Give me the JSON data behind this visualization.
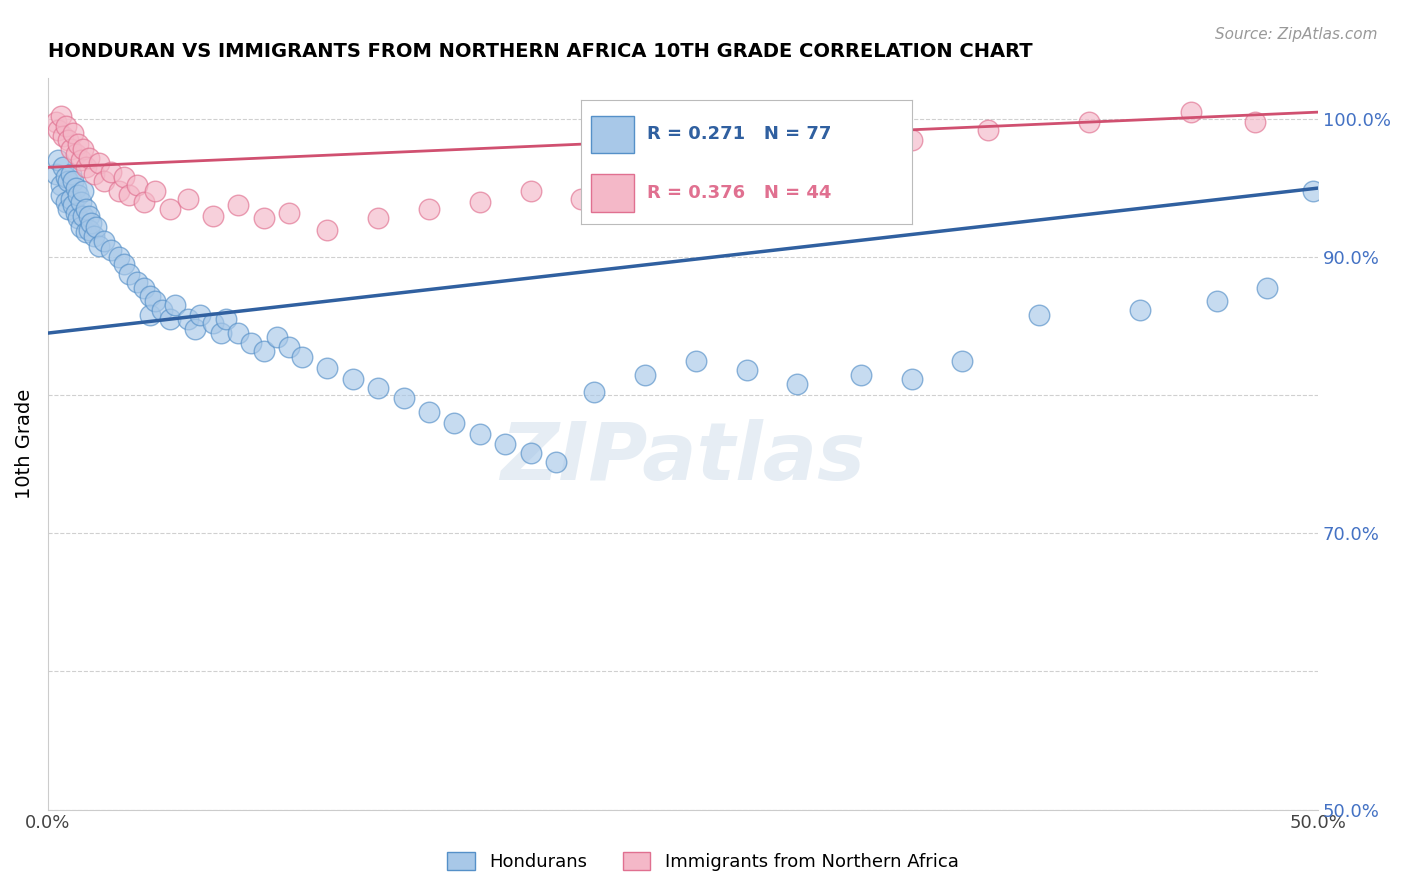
{
  "title": "HONDURAN VS IMMIGRANTS FROM NORTHERN AFRICA 10TH GRADE CORRELATION CHART",
  "source": "Source: ZipAtlas.com",
  "xlabel_blue": "Hondurans",
  "xlabel_pink": "Immigrants from Northern Africa",
  "ylabel": "10th Grade",
  "xlim": [
    0.0,
    0.5
  ],
  "ylim": [
    0.5,
    1.03
  ],
  "xtick_positions": [
    0.0,
    0.1,
    0.2,
    0.3,
    0.4,
    0.5
  ],
  "ytick_positions": [
    0.5,
    0.6,
    0.7,
    0.8,
    0.9,
    1.0
  ],
  "xtick_labels": [
    "0.0%",
    "",
    "",
    "",
    "",
    "50.0%"
  ],
  "ytick_labels": [
    "50.0%",
    "",
    "70.0%",
    "",
    "90.0%",
    "100.0%"
  ],
  "R_blue": 0.271,
  "N_blue": 77,
  "R_pink": 0.376,
  "N_pink": 44,
  "blue_color": "#a8c8e8",
  "pink_color": "#f4b8c8",
  "blue_edge_color": "#5590c8",
  "pink_edge_color": "#e07090",
  "blue_line_color": "#3060a0",
  "pink_line_color": "#d05070",
  "watermark_text": "ZIPatlas",
  "blue_line_x": [
    0.0,
    0.5
  ],
  "blue_line_y": [
    0.845,
    0.95
  ],
  "pink_line_x": [
    0.0,
    0.5
  ],
  "pink_line_y": [
    0.965,
    1.005
  ],
  "blue_scatter": [
    [
      0.003,
      0.96
    ],
    [
      0.004,
      0.97
    ],
    [
      0.005,
      0.952
    ],
    [
      0.005,
      0.945
    ],
    [
      0.006,
      0.965
    ],
    [
      0.007,
      0.958
    ],
    [
      0.007,
      0.94
    ],
    [
      0.008,
      0.955
    ],
    [
      0.008,
      0.935
    ],
    [
      0.009,
      0.96
    ],
    [
      0.009,
      0.942
    ],
    [
      0.01,
      0.955
    ],
    [
      0.01,
      0.938
    ],
    [
      0.011,
      0.95
    ],
    [
      0.011,
      0.932
    ],
    [
      0.012,
      0.945
    ],
    [
      0.012,
      0.928
    ],
    [
      0.013,
      0.94
    ],
    [
      0.013,
      0.922
    ],
    [
      0.014,
      0.948
    ],
    [
      0.014,
      0.93
    ],
    [
      0.015,
      0.935
    ],
    [
      0.015,
      0.918
    ],
    [
      0.016,
      0.93
    ],
    [
      0.016,
      0.92
    ],
    [
      0.017,
      0.925
    ],
    [
      0.018,
      0.915
    ],
    [
      0.019,
      0.922
    ],
    [
      0.02,
      0.908
    ],
    [
      0.022,
      0.912
    ],
    [
      0.025,
      0.905
    ],
    [
      0.028,
      0.9
    ],
    [
      0.03,
      0.895
    ],
    [
      0.032,
      0.888
    ],
    [
      0.035,
      0.882
    ],
    [
      0.038,
      0.878
    ],
    [
      0.04,
      0.872
    ],
    [
      0.04,
      0.858
    ],
    [
      0.042,
      0.868
    ],
    [
      0.045,
      0.862
    ],
    [
      0.048,
      0.855
    ],
    [
      0.05,
      0.865
    ],
    [
      0.055,
      0.855
    ],
    [
      0.058,
      0.848
    ],
    [
      0.06,
      0.858
    ],
    [
      0.065,
      0.852
    ],
    [
      0.068,
      0.845
    ],
    [
      0.07,
      0.855
    ],
    [
      0.075,
      0.845
    ],
    [
      0.08,
      0.838
    ],
    [
      0.085,
      0.832
    ],
    [
      0.09,
      0.842
    ],
    [
      0.095,
      0.835
    ],
    [
      0.1,
      0.828
    ],
    [
      0.11,
      0.82
    ],
    [
      0.12,
      0.812
    ],
    [
      0.13,
      0.805
    ],
    [
      0.14,
      0.798
    ],
    [
      0.15,
      0.788
    ],
    [
      0.16,
      0.78
    ],
    [
      0.17,
      0.772
    ],
    [
      0.18,
      0.765
    ],
    [
      0.19,
      0.758
    ],
    [
      0.2,
      0.752
    ],
    [
      0.215,
      0.802
    ],
    [
      0.235,
      0.815
    ],
    [
      0.255,
      0.825
    ],
    [
      0.275,
      0.818
    ],
    [
      0.295,
      0.808
    ],
    [
      0.32,
      0.815
    ],
    [
      0.34,
      0.812
    ],
    [
      0.36,
      0.825
    ],
    [
      0.39,
      0.858
    ],
    [
      0.43,
      0.862
    ],
    [
      0.46,
      0.868
    ],
    [
      0.48,
      0.878
    ],
    [
      0.498,
      0.948
    ]
  ],
  "pink_scatter": [
    [
      0.003,
      0.998
    ],
    [
      0.004,
      0.992
    ],
    [
      0.005,
      1.002
    ],
    [
      0.006,
      0.988
    ],
    [
      0.007,
      0.995
    ],
    [
      0.008,
      0.985
    ],
    [
      0.009,
      0.978
    ],
    [
      0.01,
      0.99
    ],
    [
      0.011,
      0.975
    ],
    [
      0.012,
      0.982
    ],
    [
      0.013,
      0.97
    ],
    [
      0.014,
      0.978
    ],
    [
      0.015,
      0.965
    ],
    [
      0.016,
      0.972
    ],
    [
      0.018,
      0.96
    ],
    [
      0.02,
      0.968
    ],
    [
      0.022,
      0.955
    ],
    [
      0.025,
      0.962
    ],
    [
      0.028,
      0.948
    ],
    [
      0.03,
      0.958
    ],
    [
      0.032,
      0.945
    ],
    [
      0.035,
      0.952
    ],
    [
      0.038,
      0.94
    ],
    [
      0.042,
      0.948
    ],
    [
      0.048,
      0.935
    ],
    [
      0.055,
      0.942
    ],
    [
      0.065,
      0.93
    ],
    [
      0.075,
      0.938
    ],
    [
      0.085,
      0.928
    ],
    [
      0.095,
      0.932
    ],
    [
      0.11,
      0.92
    ],
    [
      0.13,
      0.928
    ],
    [
      0.15,
      0.935
    ],
    [
      0.17,
      0.94
    ],
    [
      0.19,
      0.948
    ],
    [
      0.21,
      0.942
    ],
    [
      0.24,
      0.958
    ],
    [
      0.265,
      0.97
    ],
    [
      0.3,
      0.978
    ],
    [
      0.34,
      0.985
    ],
    [
      0.37,
      0.992
    ],
    [
      0.41,
      0.998
    ],
    [
      0.45,
      1.005
    ],
    [
      0.475,
      0.998
    ]
  ]
}
